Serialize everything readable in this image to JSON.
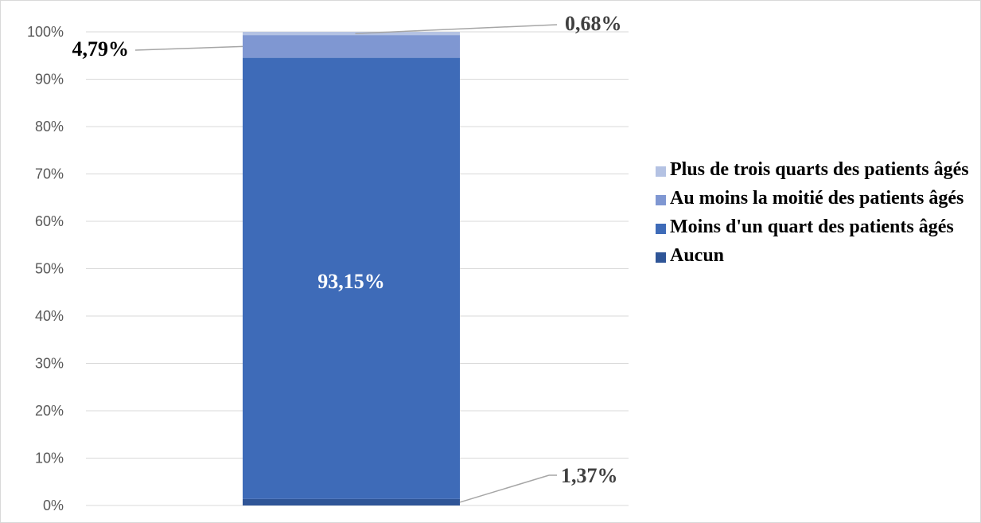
{
  "chart_data": {
    "type": "bar",
    "stacked": true,
    "normalized": true,
    "categories": [
      ""
    ],
    "yticks": [
      "0%",
      "10%",
      "20%",
      "30%",
      "40%",
      "50%",
      "60%",
      "70%",
      "80%",
      "90%",
      "100%"
    ],
    "ylim": [
      0,
      100
    ],
    "grid": true,
    "legend_position": "right",
    "series": [
      {
        "name": "Aucun",
        "values": [
          1.37
        ],
        "label": "1,37%",
        "color": "#2f5597"
      },
      {
        "name": "Moins d'un quart des patients âgés",
        "values": [
          93.15
        ],
        "label": "93,15%",
        "color": "#3e6bb8"
      },
      {
        "name": "Au moins la moitié des patients âgés",
        "values": [
          4.79
        ],
        "label": "4,79%",
        "color": "#7f97d2"
      },
      {
        "name": "Plus de trois quarts des patients âgés",
        "values": [
          0.68
        ],
        "label": "0,68%",
        "color": "#b4c2e3"
      }
    ]
  }
}
